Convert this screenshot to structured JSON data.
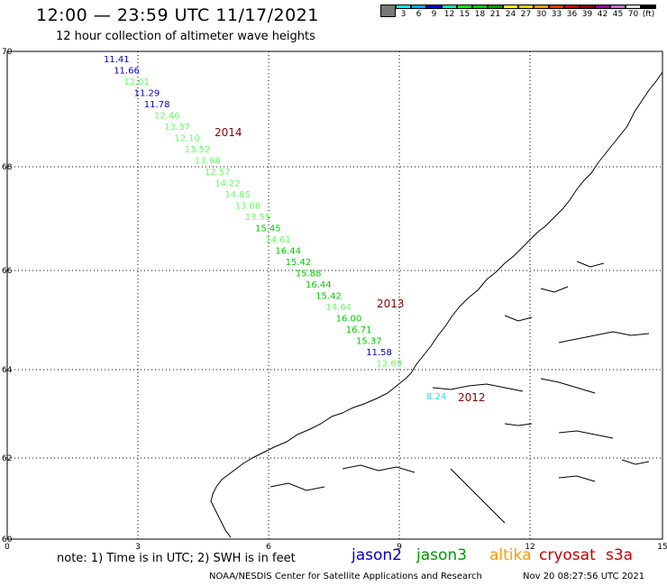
{
  "header": {
    "title": "12:00 — 23:59 UTC 11/17/2021",
    "subtitle": "12 hour collection of altimeter wave heights"
  },
  "color_scale": {
    "unit": "(ft)",
    "colors": [
      "#777777",
      "#00ffff",
      "#00aaff",
      "#0000ff",
      "#00ffaa",
      "#00ff00",
      "#00cc00",
      "#009900",
      "#ffff00",
      "#ffcc00",
      "#ff9900",
      "#ff3300",
      "#cc0000",
      "#880000",
      "#990099",
      "#cc66cc",
      "#dddddd",
      "#000000"
    ],
    "labels": [
      "",
      "3",
      "6",
      "9",
      "12",
      "15",
      "18",
      "21",
      "24",
      "27",
      "30",
      "33",
      "36",
      "39",
      "42",
      "45",
      "70",
      "(ft)"
    ]
  },
  "axes": {
    "y_ticks": [
      "70",
      "68",
      "66",
      "64",
      "62",
      "60"
    ],
    "x_ticks": [
      "0",
      "3",
      "6",
      "9",
      "12",
      "15"
    ]
  },
  "track": {
    "points": [
      {
        "v": "11.41",
        "c": "#0000cc"
      },
      {
        "v": "11.66",
        "c": "#0000cc"
      },
      {
        "v": "12.01",
        "c": "#66ff66"
      },
      {
        "v": "11.29",
        "c": "#0000cc"
      },
      {
        "v": "11.78",
        "c": "#0000cc"
      },
      {
        "v": "12.46",
        "c": "#66ff66"
      },
      {
        "v": "13.37",
        "c": "#66ff66"
      },
      {
        "v": "12.10",
        "c": "#66ff66"
      },
      {
        "v": "13.52",
        "c": "#66ff66"
      },
      {
        "v": "13.98",
        "c": "#66ff66"
      },
      {
        "v": "12.57",
        "c": "#66ff66"
      },
      {
        "v": "14.22",
        "c": "#66ff66"
      },
      {
        "v": "14.85",
        "c": "#66ff66"
      },
      {
        "v": "13.68",
        "c": "#66ff66"
      },
      {
        "v": "13.55",
        "c": "#66ff66"
      },
      {
        "v": "15.45",
        "c": "#00cc00"
      },
      {
        "v": "14.61",
        "c": "#66ff66"
      },
      {
        "v": "16.44",
        "c": "#00cc00"
      },
      {
        "v": "15.42",
        "c": "#00cc00"
      },
      {
        "v": "15.88",
        "c": "#00cc00"
      },
      {
        "v": "16.44",
        "c": "#00cc00"
      },
      {
        "v": "15.42",
        "c": "#00cc00"
      },
      {
        "v": "14.64",
        "c": "#66ff66"
      },
      {
        "v": "16.00",
        "c": "#00cc00"
      },
      {
        "v": "16.71",
        "c": "#00cc00"
      },
      {
        "v": "15.37",
        "c": "#00cc00"
      },
      {
        "v": "11.58",
        "c": "#0000cc"
      },
      {
        "v": "12.69",
        "c": "#66ff66"
      },
      {
        "v": "8.24",
        "c": "#33dddd"
      }
    ],
    "year_labels": [
      "2014",
      "2013",
      "2012"
    ],
    "year_color": "#880000"
  },
  "footer": {
    "note": "note: 1) Time is in UTC; 2) SWH is in feet",
    "legend": [
      {
        "name": "jason2",
        "color": "#0000cc"
      },
      {
        "name": "jason3",
        "color": "#009900"
      },
      {
        "name": "altika",
        "color": "#ff9900"
      },
      {
        "name": "cryosat",
        "color": "#cc0000"
      },
      {
        "name": "s3a",
        "color": "#cc0000"
      }
    ],
    "credit": "NOAA/NESDIS Center for Satellite Applications and Research",
    "timestamp": "Nov 20 08:27:56 UTC 2021"
  }
}
